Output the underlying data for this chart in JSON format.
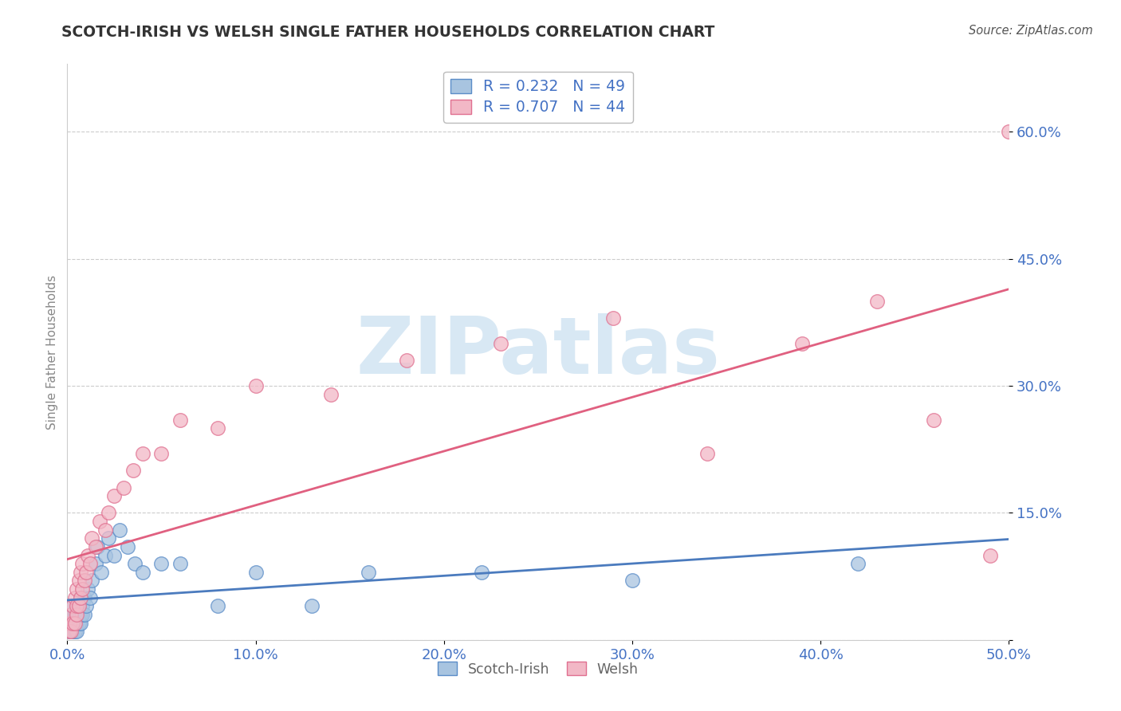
{
  "title": "SCOTCH-IRISH VS WELSH SINGLE FATHER HOUSEHOLDS CORRELATION CHART",
  "source": "Source: ZipAtlas.com",
  "ylabel": "Single Father Households",
  "xlim": [
    0.0,
    0.5
  ],
  "ylim": [
    0.0,
    0.68
  ],
  "xticks": [
    0.0,
    0.1,
    0.2,
    0.3,
    0.4,
    0.5
  ],
  "xtick_labels": [
    "0.0%",
    "10.0%",
    "20.0%",
    "30.0%",
    "40.0%",
    "50.0%"
  ],
  "yticks": [
    0.0,
    0.15,
    0.3,
    0.45,
    0.6
  ],
  "ytick_labels": [
    "",
    "15.0%",
    "30.0%",
    "45.0%",
    "60.0%"
  ],
  "scotch_irish_color": "#A8C4E0",
  "welsh_color": "#F2B8C6",
  "scotch_irish_edge_color": "#5B8DC8",
  "welsh_edge_color": "#E07090",
  "scotch_irish_line_color": "#4B7BBE",
  "welsh_line_color": "#E06080",
  "scotch_irish_R": 0.232,
  "scotch_irish_N": 49,
  "welsh_R": 0.707,
  "welsh_N": 44,
  "scotch_irish_x": [
    0.001,
    0.001,
    0.002,
    0.002,
    0.002,
    0.003,
    0.003,
    0.003,
    0.003,
    0.004,
    0.004,
    0.004,
    0.005,
    0.005,
    0.005,
    0.005,
    0.006,
    0.006,
    0.006,
    0.007,
    0.007,
    0.007,
    0.008,
    0.008,
    0.009,
    0.009,
    0.01,
    0.011,
    0.012,
    0.013,
    0.015,
    0.016,
    0.018,
    0.02,
    0.022,
    0.025,
    0.028,
    0.032,
    0.036,
    0.04,
    0.05,
    0.06,
    0.08,
    0.1,
    0.13,
    0.16,
    0.22,
    0.3,
    0.42
  ],
  "scotch_irish_y": [
    0.01,
    0.02,
    0.01,
    0.02,
    0.03,
    0.01,
    0.02,
    0.03,
    0.04,
    0.01,
    0.02,
    0.03,
    0.01,
    0.02,
    0.03,
    0.04,
    0.02,
    0.03,
    0.04,
    0.02,
    0.03,
    0.05,
    0.03,
    0.04,
    0.03,
    0.05,
    0.04,
    0.06,
    0.05,
    0.07,
    0.09,
    0.11,
    0.08,
    0.1,
    0.12,
    0.1,
    0.13,
    0.11,
    0.09,
    0.08,
    0.09,
    0.09,
    0.04,
    0.08,
    0.04,
    0.08,
    0.08,
    0.07,
    0.09
  ],
  "welsh_x": [
    0.001,
    0.001,
    0.002,
    0.002,
    0.003,
    0.003,
    0.004,
    0.004,
    0.005,
    0.005,
    0.005,
    0.006,
    0.006,
    0.007,
    0.007,
    0.008,
    0.008,
    0.009,
    0.01,
    0.011,
    0.012,
    0.013,
    0.015,
    0.017,
    0.02,
    0.022,
    0.025,
    0.03,
    0.035,
    0.04,
    0.05,
    0.06,
    0.08,
    0.1,
    0.14,
    0.18,
    0.23,
    0.29,
    0.34,
    0.39,
    0.43,
    0.46,
    0.49,
    0.5
  ],
  "welsh_y": [
    0.01,
    0.02,
    0.01,
    0.03,
    0.02,
    0.04,
    0.02,
    0.05,
    0.03,
    0.04,
    0.06,
    0.04,
    0.07,
    0.05,
    0.08,
    0.06,
    0.09,
    0.07,
    0.08,
    0.1,
    0.09,
    0.12,
    0.11,
    0.14,
    0.13,
    0.15,
    0.17,
    0.18,
    0.2,
    0.22,
    0.22,
    0.26,
    0.25,
    0.3,
    0.29,
    0.33,
    0.35,
    0.38,
    0.22,
    0.35,
    0.4,
    0.26,
    0.1,
    0.6
  ],
  "background_color": "#FFFFFF",
  "grid_color": "#CCCCCC",
  "title_color": "#333333",
  "tick_label_color": "#4472C4",
  "watermark_color": "#D8E8F4",
  "legend_text_color": "#4472C4",
  "bottom_legend_text_color": "#666666"
}
